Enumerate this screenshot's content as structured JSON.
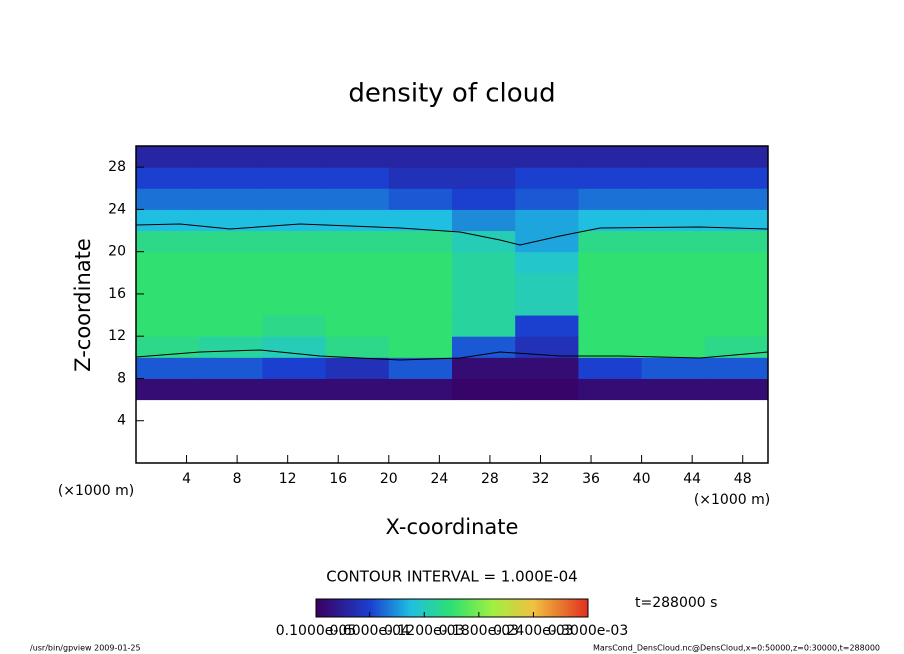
{
  "chart_data": {
    "type": "heatmap",
    "title": "density of cloud",
    "x_label": "X-coordinate",
    "y_label": "Z-coordinate",
    "x_unit": "(×1000 m)",
    "y_unit": "(×1000 m)",
    "xlim": [
      0,
      50
    ],
    "ylim": [
      0,
      30
    ],
    "xticks": [
      4,
      8,
      12,
      16,
      20,
      24,
      28,
      32,
      36,
      40,
      44,
      48
    ],
    "yticks": [
      4,
      8,
      12,
      16,
      20,
      24,
      28
    ],
    "field": {
      "x_edges": [
        0,
        5,
        10,
        15,
        20,
        25,
        30,
        35,
        40,
        45,
        50
      ],
      "z_edges": [
        0,
        2,
        4,
        6,
        8,
        10,
        12,
        14,
        16,
        18,
        20,
        22,
        24,
        26,
        28,
        30
      ],
      "values": [
        [
          null,
          null,
          null,
          null,
          null,
          null,
          null,
          null,
          null,
          null
        ],
        [
          null,
          null,
          null,
          null,
          null,
          null,
          null,
          null,
          null,
          null
        ],
        [
          null,
          null,
          null,
          null,
          null,
          null,
          null,
          null,
          null,
          null
        ],
        [
          1e-05,
          1e-05,
          1e-05,
          1e-05,
          1e-05,
          5e-06,
          5e-06,
          1e-05,
          1e-05,
          1e-05
        ],
        [
          6e-05,
          6e-05,
          5e-05,
          4e-05,
          6e-05,
          1e-05,
          1e-05,
          5e-05,
          6e-05,
          6e-05
        ],
        [
          0.00014,
          0.00013,
          0.00012,
          0.00014,
          0.00015,
          6e-05,
          4e-05,
          0.00015,
          0.00015,
          0.00014
        ],
        [
          0.00015,
          0.00015,
          0.00014,
          0.00015,
          0.00015,
          0.00013,
          5e-05,
          0.00015,
          0.00015,
          0.00015
        ],
        [
          0.00015,
          0.00015,
          0.00015,
          0.00015,
          0.00015,
          0.00013,
          0.00012,
          0.00015,
          0.00015,
          0.00015
        ],
        [
          0.00015,
          0.00015,
          0.00015,
          0.00015,
          0.00015,
          0.00013,
          0.00012,
          0.00015,
          0.00015,
          0.00015
        ],
        [
          0.00015,
          0.00015,
          0.00015,
          0.00015,
          0.00015,
          0.00013,
          0.00011,
          0.00015,
          0.00015,
          0.00015
        ],
        [
          0.00014,
          0.00014,
          0.00014,
          0.00014,
          0.00014,
          0.00012,
          9e-05,
          0.00014,
          0.00014,
          0.00014
        ],
        [
          0.0001,
          0.0001,
          0.0001,
          0.0001,
          0.0001,
          8e-05,
          9e-05,
          0.0001,
          0.0001,
          0.0001
        ],
        [
          7e-05,
          7e-05,
          7e-05,
          7e-05,
          6e-05,
          5e-05,
          6e-05,
          7e-05,
          7e-05,
          7e-05
        ],
        [
          5e-05,
          5e-05,
          5e-05,
          5e-05,
          4e-05,
          4e-05,
          5e-05,
          5e-05,
          5e-05,
          5e-05
        ],
        [
          3e-05,
          3e-05,
          3e-05,
          3e-05,
          3e-05,
          3e-05,
          3e-05,
          3e-05,
          3e-05,
          3e-05
        ]
      ]
    },
    "colormap": [
      "#3a0060",
      "#1a40d0",
      "#20c0e0",
      "#30e070",
      "#a0f040",
      "#f0c040",
      "#e03020"
    ],
    "colorbar": {
      "lim": [
        1e-06,
        0.0003
      ],
      "ticks": [
        {
          "value": 1e-06,
          "label": "0.1000e-05"
        },
        {
          "value": 6e-05,
          "label": "0.6000e-04"
        },
        {
          "value": 0.00012,
          "label": "0.1200e-03"
        },
        {
          "value": 0.00018,
          "label": "0.1800e-03"
        },
        {
          "value": 0.00024,
          "label": "0.2400e-03"
        },
        {
          "value": 0.0003,
          "label": "0.3000e-03"
        }
      ]
    },
    "contour_text": "CONTOUR INTERVAL = 1.000E-04",
    "time_text": "t=288000 s",
    "footer_left": "/usr/bin/gpview  2009-01-25",
    "footer_right": "MarsCond_DensCloud.nc@DensCloud,x=0:50000,z=0:30000,t=288000"
  }
}
